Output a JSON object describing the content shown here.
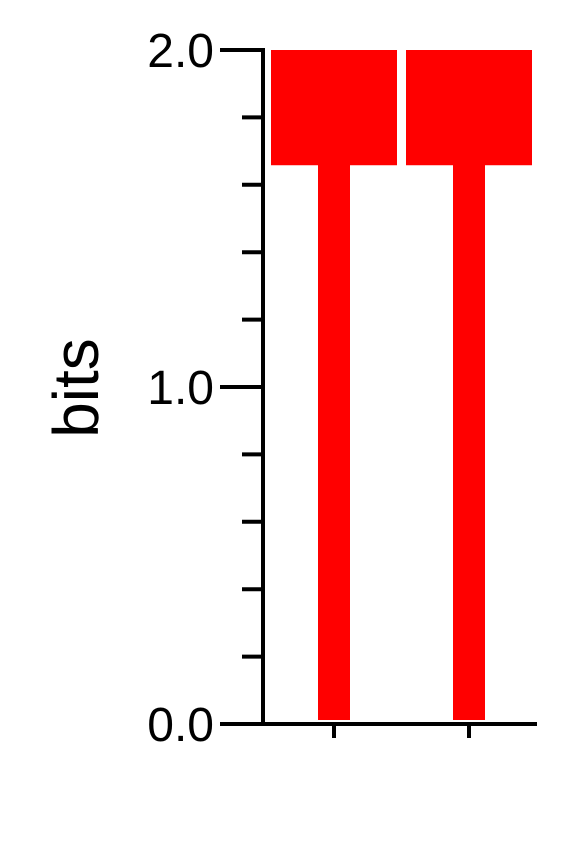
{
  "chart_data": {
    "type": "sequence-logo",
    "ylabel": "bits",
    "ylim": [
      0,
      2
    ],
    "y_tick_labels": [
      "0.0",
      "1.0",
      "2.0"
    ],
    "y_minor_ticks": [
      0.2,
      0.4,
      0.6,
      0.8,
      1.2,
      1.4,
      1.6,
      1.8
    ],
    "x_positions": [
      1,
      2
    ],
    "series": [
      {
        "letter": "T",
        "position": 1,
        "height": 2.0,
        "color": "#ff0000"
      },
      {
        "letter": "T",
        "position": 2,
        "height": 2.0,
        "color": "#ff0000"
      }
    ],
    "grid": false
  }
}
